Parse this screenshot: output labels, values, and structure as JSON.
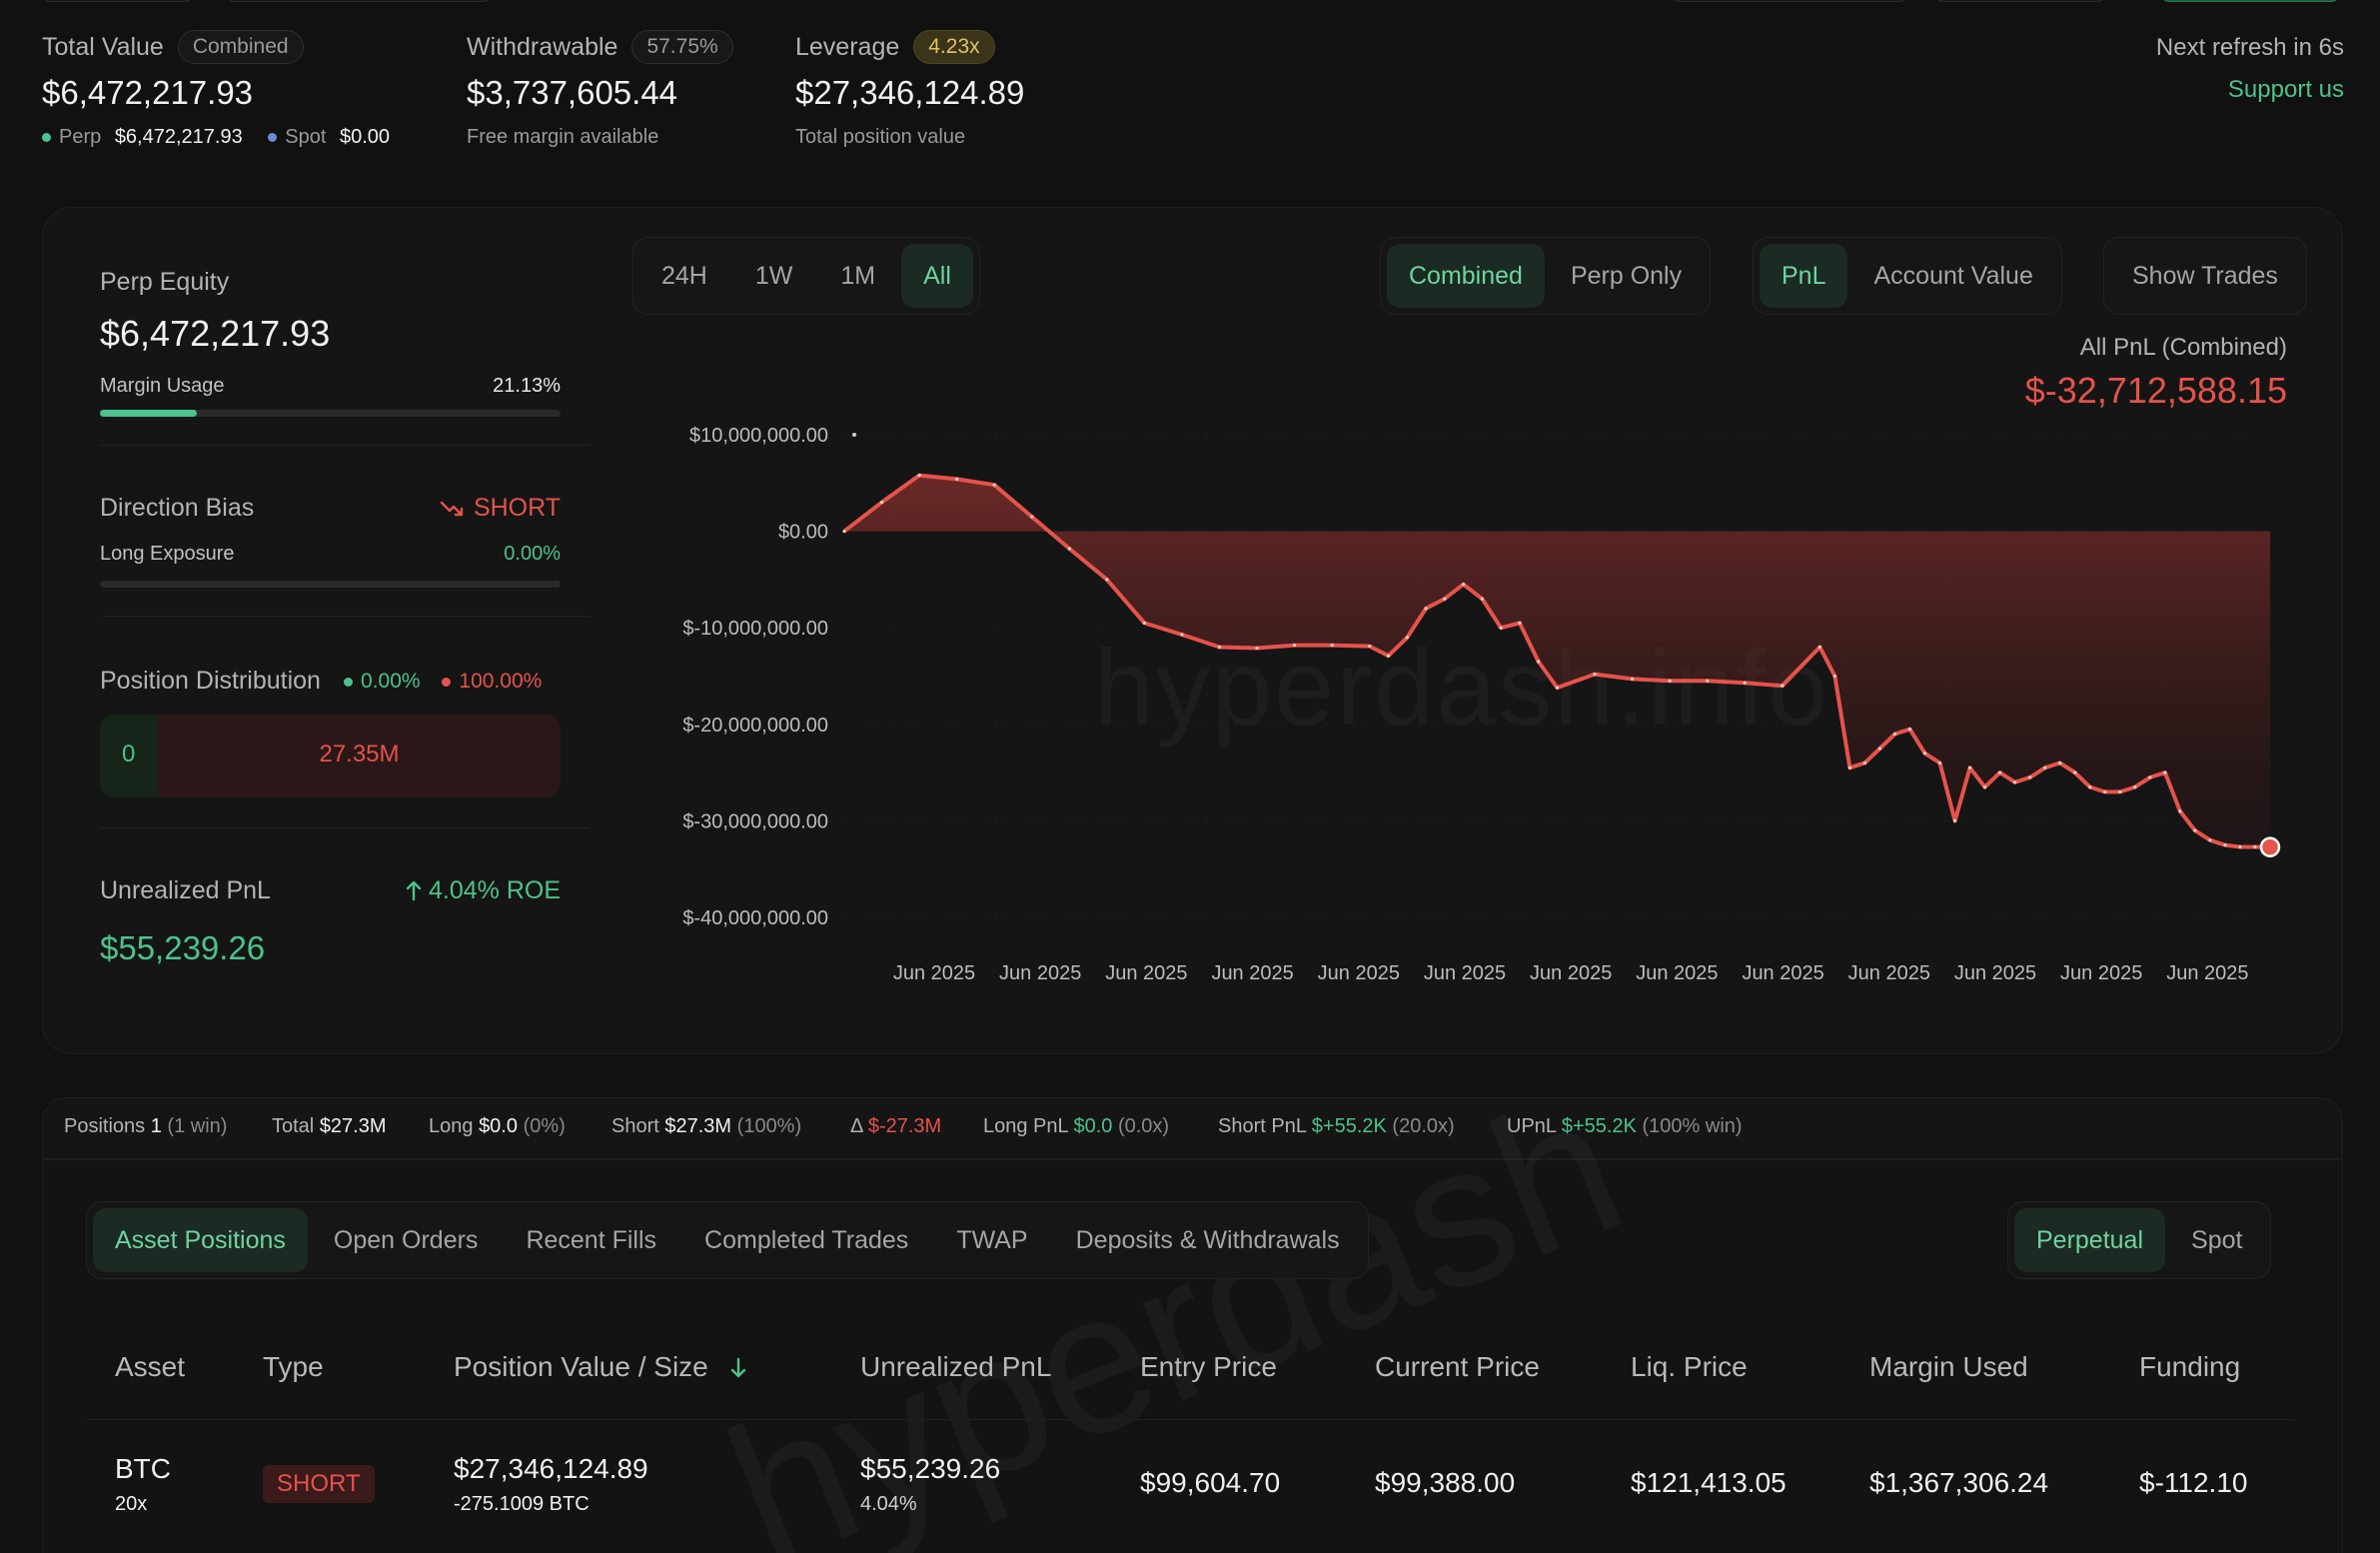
{
  "summary": {
    "total_value": {
      "label": "Total Value",
      "badge": "Combined",
      "value": "$6,472,217.93",
      "perp_label": "Perp",
      "perp_value": "$6,472,217.93",
      "spot_label": "Spot",
      "spot_value": "$0.00"
    },
    "withdrawable": {
      "label": "Withdrawable",
      "badge": "57.75%",
      "value": "$3,737,605.44",
      "sub": "Free margin available"
    },
    "leverage": {
      "label": "Leverage",
      "badge": "4.23x",
      "value": "$27,346,124.89",
      "sub": "Total position value"
    },
    "refresh": "Next refresh in 6s",
    "support": "Support us"
  },
  "left_panel": {
    "perp_equity_label": "Perp Equity",
    "perp_equity_value": "$6,472,217.93",
    "margin_usage_label": "Margin Usage",
    "margin_usage_value": "21.13%",
    "margin_usage_fraction": 0.2113,
    "direction_bias_label": "Direction Bias",
    "direction_bias_value": "SHORT",
    "long_exposure_label": "Long Exposure",
    "long_exposure_value": "0.00%",
    "position_distribution_label": "Position Distribution",
    "dist_long_pct": "0.00%",
    "dist_short_pct": "100.00%",
    "dist_long_value": "0",
    "dist_short_value": "27.35M",
    "unrealized_pnl_label": "Unrealized PnL",
    "roe": "4.04% ROE",
    "unrealized_pnl_value": "$55,239.26"
  },
  "chart_controls": {
    "ranges": [
      "24H",
      "1W",
      "1M",
      "All"
    ],
    "active_range": "All",
    "scope": [
      "Combined",
      "Perp Only"
    ],
    "metric": [
      "PnL",
      "Account Value"
    ],
    "show_trades": "Show Trades"
  },
  "chart_header": {
    "label": "All PnL (Combined)",
    "value": "$-32,712,588.15"
  },
  "watermark": "hyperdash.info",
  "chart_data": {
    "type": "area",
    "ylim": [
      -40000000,
      10000000
    ],
    "y_ticks": [
      10000000,
      0,
      -10000000,
      -20000000,
      -30000000,
      -40000000
    ],
    "y_tick_labels": [
      "$10,000,000.00",
      "$0.00",
      "$-10,000,000.00",
      "$-20,000,000.00",
      "$-30,000,000.00",
      "$-40,000,000.00"
    ],
    "x_tick_labels": [
      "Jun 2025",
      "Jun 2025",
      "Jun 2025",
      "Jun 2025",
      "Jun 2025",
      "Jun 2025",
      "Jun 2025",
      "Jun 2025",
      "Jun 2025",
      "Jun 2025",
      "Jun 2025",
      "Jun 2025",
      "Jun 2025"
    ],
    "x": [
      0,
      0.5,
      1,
      1.5,
      2,
      2.5,
      3,
      3.5,
      4,
      4.5,
      5,
      5.5,
      6,
      6.5,
      7,
      7.25,
      7.5,
      7.75,
      8,
      8.25,
      8.5,
      8.75,
      9,
      9.25,
      9.5,
      10,
      10.5,
      11,
      11.5,
      12,
      12.5,
      13,
      13.2,
      13.4,
      13.6,
      13.8,
      14,
      14.2,
      14.4,
      14.6,
      14.8,
      15,
      15.2,
      15.4,
      15.6,
      15.8,
      16,
      16.2,
      16.4,
      16.6,
      16.8,
      17,
      17.2,
      17.4,
      17.6,
      17.8,
      18,
      18.2,
      18.4,
      18.6,
      18.8,
      19
    ],
    "y": [
      0,
      3000000,
      5800000,
      5400000,
      4800000,
      1500000,
      -1800000,
      -5000000,
      -9500000,
      -10700000,
      -12000000,
      -12100000,
      -11800000,
      -11800000,
      -11900000,
      -12900000,
      -11000000,
      -8000000,
      -7000000,
      -5500000,
      -7000000,
      -10000000,
      -9500000,
      -13500000,
      -16200000,
      -14800000,
      -15300000,
      -15500000,
      -15500000,
      -15700000,
      -16000000,
      -12000000,
      -15000000,
      -24500000,
      -24000000,
      -22500000,
      -21000000,
      -20500000,
      -23000000,
      -24000000,
      -30000000,
      -24500000,
      -26500000,
      -25000000,
      -26000000,
      -25500000,
      -24500000,
      -24000000,
      -25000000,
      -26500000,
      -27000000,
      -27000000,
      -26500000,
      -25500000,
      -25000000,
      -29000000,
      -31000000,
      -32000000,
      -32500000,
      -32700000,
      -32700000,
      -32712588
    ]
  },
  "positions_summary": {
    "positions_label": "Positions",
    "positions_value": "1",
    "positions_note": "(1 win)",
    "total_label": "Total",
    "total_value": "$27.3M",
    "long_label": "Long",
    "long_value": "$0.0",
    "long_note": "(0%)",
    "short_label": "Short",
    "short_value": "$27.3M",
    "short_note": "(100%)",
    "delta_label": "Δ",
    "delta_value": "$-27.3M",
    "long_pnl_label": "Long PnL",
    "long_pnl_value": "$0.0",
    "long_pnl_note": "(0.0x)",
    "short_pnl_label": "Short PnL",
    "short_pnl_value": "$+55.2K",
    "short_pnl_note": "(20.0x)",
    "upnl_label": "UPnL",
    "upnl_value": "$+55.2K",
    "upnl_note": "(100% win)"
  },
  "tabs": [
    "Asset Positions",
    "Open Orders",
    "Recent Fills",
    "Completed Trades",
    "TWAP",
    "Deposits & Withdrawals"
  ],
  "market_tabs": [
    "Perpetual",
    "Spot"
  ],
  "table": {
    "headers": [
      "Asset",
      "Type",
      "Position Value / Size",
      "Unrealized PnL",
      "Entry Price",
      "Current Price",
      "Liq. Price",
      "Margin Used",
      "Funding"
    ],
    "row": {
      "asset": "BTC",
      "leverage": "20x",
      "type": "SHORT",
      "position_value": "$27,346,124.89",
      "position_size": "-275.1009 BTC",
      "upnl": "$55,239.26",
      "upnl_pct": "4.04%",
      "entry": "$99,604.70",
      "current": "$99,388.00",
      "liq": "$121,413.05",
      "margin": "$1,367,306.24",
      "funding": "$-112.10"
    }
  },
  "colors": {
    "accent_green": "#4cc38a",
    "accent_red": "#e5534b",
    "background": "#111111"
  }
}
